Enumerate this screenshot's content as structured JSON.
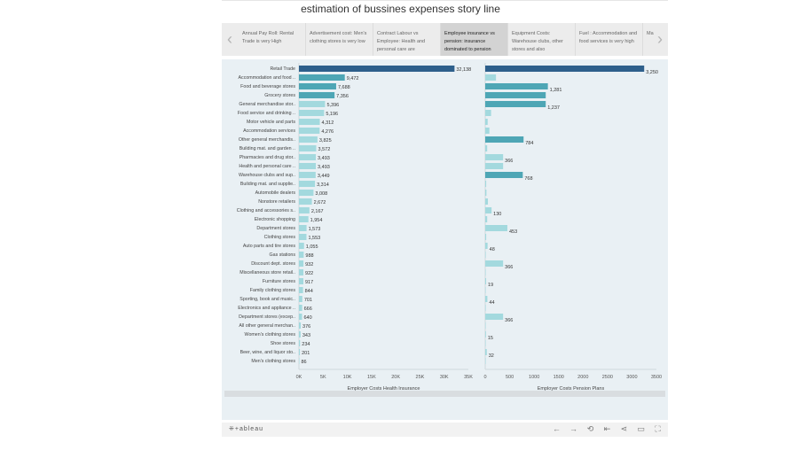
{
  "title": "estimation of bussines expenses story line",
  "nav": {
    "tabs": [
      "Annual Pay Roll: Rental Trade is very High",
      "Advertisement cost: Men's clothing stores is very low",
      "Contract Labour vs Employee: Health and personal care are",
      "Employee insurance vs pension: insurance dominated to pension",
      "Equipment Costs: Warehouse clubs, other stores and also",
      "Fuel : Accommodation and food services is very high",
      "Ma Su an"
    ],
    "active_index": 3,
    "prev_icon": "‹",
    "next_icon": "›"
  },
  "footer": {
    "logo": "⁜+ableau",
    "tool_icons": [
      "←",
      "→",
      "↻",
      "⇤",
      "share",
      "comment",
      "fullscreen"
    ],
    "tool_glyphs": [
      "←",
      "→",
      "⟲",
      "⇤",
      "⋖",
      "▭",
      "⛶"
    ]
  },
  "chart_data": [
    {
      "type": "bar",
      "orientation": "horizontal",
      "xlabel": "Employer Costs Health Insurance",
      "xlim": [
        0,
        35000
      ],
      "ticks": [
        "0K",
        "5K",
        "10K",
        "15K",
        "20K",
        "25K",
        "30K",
        "35K"
      ],
      "categories": [
        "Retail Trade",
        "Accommodation and food ..",
        "Food and beverage stores",
        "Grocery stores",
        "General merchandise stor..",
        "Food service and drinking ..",
        "Motor vehicle and parts",
        "Accommodation services",
        "Other general merchandis..",
        "Building mat. and garden ..",
        "Pharmacies and drug stor..",
        "Health and personal care ..",
        "Warehouse clubs and sup..",
        "Building mat. and supplie..",
        "Automobile dealers",
        "Nonstore retailers",
        "Clothing and accessories s..",
        "Electronic shopping",
        "Department stores",
        "Clothing stores",
        "Auto parts and tire stores",
        "Gas stations",
        "Discount dept. stores",
        "Miscellaneous store retail..",
        "Furniture stores",
        "Family clothing stores",
        "Sporting, book and music..",
        "Electronics and appliance ..",
        "Department stores (excep..",
        "All other general merchan..",
        "Women's clothing stores",
        "Shoe stores",
        "Beer, wine, and liquor sto..",
        "Men's clothing stores"
      ],
      "values": [
        32138,
        9472,
        7688,
        7356,
        5396,
        5196,
        4312,
        4276,
        3825,
        3572,
        3493,
        3493,
        3449,
        3314,
        3008,
        2672,
        2167,
        1954,
        1573,
        1553,
        1055,
        988,
        932,
        922,
        917,
        844,
        701,
        666,
        640,
        376,
        343,
        234,
        201,
        86
      ],
      "labels": [
        "32,138",
        "9,472",
        "7,688",
        "7,356",
        "5,396",
        "5,196",
        "4,312",
        "4,276",
        "3,825",
        "3,572",
        "3,493",
        "3,493",
        "3,449",
        "3,314",
        "3,008",
        "2,672",
        "2,167",
        "1,954",
        "1,573",
        "1,553",
        "1,055",
        "988",
        "932",
        "922",
        "917",
        "844",
        "701",
        "666",
        "640",
        "376",
        "343",
        "234",
        "201",
        "86"
      ]
    },
    {
      "type": "bar",
      "orientation": "horizontal",
      "xlabel": "Employer Costs Pension Plans",
      "xlim": [
        0,
        3500
      ],
      "ticks": [
        "0",
        "500",
        "1000",
        "1500",
        "2000",
        "2500",
        "3000",
        "3500"
      ],
      "values": [
        3250,
        220,
        1281,
        1237,
        1237,
        120,
        50,
        85,
        784,
        40,
        366,
        366,
        768,
        20,
        25,
        55,
        130,
        40,
        453,
        20,
        48,
        10,
        366,
        5,
        19,
        5,
        44,
        10,
        366,
        5,
        15,
        5,
        32,
        5
      ],
      "labels": [
        "3,250",
        "",
        "1,281",
        "",
        "1,237",
        "",
        "",
        "",
        "784",
        "",
        "366",
        "",
        "768",
        "",
        "",
        "",
        "130",
        "",
        "453",
        "",
        "48",
        "",
        "366",
        "",
        "19",
        "",
        "44",
        "",
        "366",
        "",
        "15",
        "",
        "32",
        ""
      ]
    }
  ],
  "colors": {
    "bar_dark": "#2d5f8b",
    "bar_mid": "#4ea6b5",
    "bar_light": "#a3d9de",
    "panel_bg": "#e9f0f4"
  }
}
